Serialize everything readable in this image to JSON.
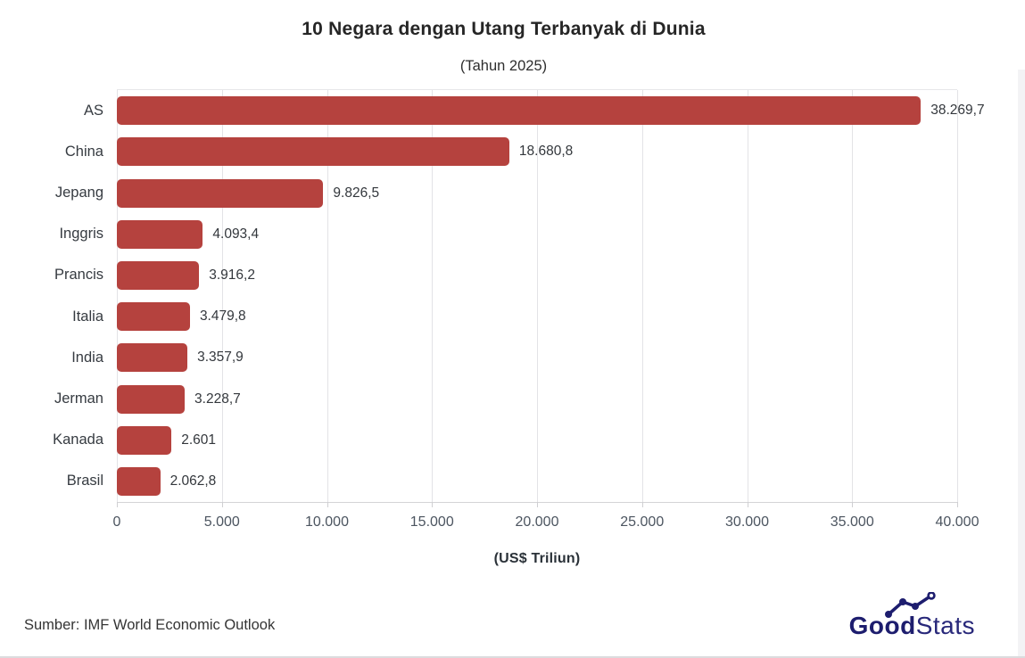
{
  "header": {
    "title": "10 Negara dengan Utang Terbanyak di Dunia",
    "subtitle": "(Tahun 2025)"
  },
  "chart_data": {
    "type": "bar",
    "orientation": "horizontal",
    "title": "10 Negara dengan Utang Terbanyak di Dunia",
    "subtitle": "(Tahun 2025)",
    "xlabel": "(US$ Triliun)",
    "xlim": [
      0,
      40000
    ],
    "grid": true,
    "legend": "none",
    "bar_color": "#b5423e",
    "categories": [
      "AS",
      "China",
      "Jepang",
      "Inggris",
      "Prancis",
      "Italia",
      "India",
      "Jerman",
      "Kanada",
      "Brasil"
    ],
    "values": [
      38269.7,
      18680.8,
      9826.5,
      4093.4,
      3916.2,
      3479.8,
      3357.9,
      3228.7,
      2601,
      2062.8
    ],
    "value_labels": [
      "38.269,7",
      "18.680,8",
      "9.826,5",
      "4.093,4",
      "3.916,2",
      "3.479,8",
      "3.357,9",
      "3.228,7",
      "2.601",
      "2.062,8"
    ],
    "x_ticks": [
      {
        "value": 0,
        "label": "0"
      },
      {
        "value": 5000,
        "label": "5.000"
      },
      {
        "value": 10000,
        "label": "10.000"
      },
      {
        "value": 15000,
        "label": "15.000"
      },
      {
        "value": 20000,
        "label": "20.000"
      },
      {
        "value": 25000,
        "label": "25.000"
      },
      {
        "value": 30000,
        "label": "30.000"
      },
      {
        "value": 35000,
        "label": "35.000"
      },
      {
        "value": 40000,
        "label": "40.000"
      }
    ]
  },
  "footer": {
    "source": "Sumber: IMF World Economic Outlook",
    "logo_bold": "Good",
    "logo_light": "Stats"
  },
  "colors": {
    "bar": "#b5423e",
    "logo_navy": "#1d1d6e",
    "gridline": "#e3e3e6"
  }
}
